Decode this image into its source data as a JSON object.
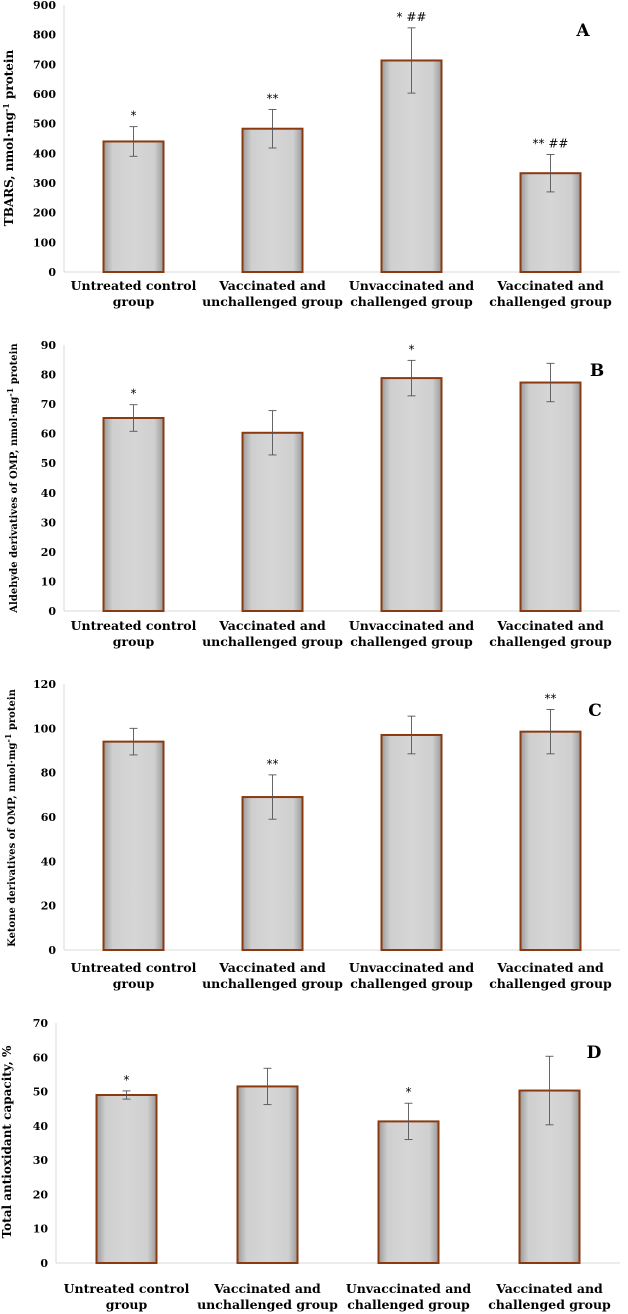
{
  "chart_data": [
    {
      "type": "bar",
      "panel": "A",
      "ylabel": "TBARS, nmol·mg",
      "ylabel_sup": "-1",
      "ylabel_suffix": " protein",
      "ylim": [
        0,
        900
      ],
      "yticks": [
        0,
        100,
        200,
        300,
        400,
        500,
        600,
        700,
        800,
        900
      ],
      "categories": [
        [
          "Untreated control",
          "group"
        ],
        [
          "Vaccinated and",
          "unchallenged group"
        ],
        [
          "Unvaccinated and",
          "challenged group"
        ],
        [
          "Vaccinated and",
          "challenged group"
        ]
      ],
      "values": [
        440,
        483,
        713,
        333
      ],
      "errors": [
        50,
        65,
        110,
        63
      ],
      "annotations": [
        "*",
        "**",
        "* ##",
        "**  ##"
      ]
    },
    {
      "type": "bar",
      "panel": "B",
      "ylabel": "Aldehyde derivatives of OMP, nmol·mg",
      "ylabel_sup": "-1",
      "ylabel_suffix": " protein",
      "ylim": [
        0,
        90
      ],
      "yticks": [
        0,
        10,
        20,
        30,
        40,
        50,
        60,
        70,
        80,
        90
      ],
      "categories": [
        [
          "Untreated control",
          "group"
        ],
        [
          "Vaccinated and",
          "unchallenged group"
        ],
        [
          "Unvaccinated and",
          "challenged group"
        ],
        [
          "Vaccinated and",
          "challenged group"
        ]
      ],
      "values": [
        65.3,
        60.3,
        78.8,
        77.3
      ],
      "errors": [
        4.5,
        7.5,
        6,
        6.5
      ],
      "annotations": [
        "*",
        "",
        "*",
        ""
      ]
    },
    {
      "type": "bar",
      "panel": "C",
      "ylabel": "Ketone derivatives of OMP, nmol·mg",
      "ylabel_sup": "-1",
      "ylabel_suffix": " protein",
      "ylim": [
        0,
        120
      ],
      "yticks": [
        0,
        20,
        40,
        60,
        80,
        100,
        120
      ],
      "categories": [
        [
          "Untreated control",
          "group"
        ],
        [
          "Vaccinated and",
          "unchallenged group"
        ],
        [
          "Unvaccinated and",
          "challenged group"
        ],
        [
          "Vaccinated and",
          "challenged group"
        ]
      ],
      "values": [
        94,
        69,
        97,
        98.5
      ],
      "errors": [
        6,
        10,
        8.5,
        10
      ],
      "annotations": [
        "",
        "**",
        "",
        "**"
      ]
    },
    {
      "type": "bar",
      "panel": "D",
      "ylabel": "Total antioxidant capacity, %",
      "ylabel_sup": "",
      "ylabel_suffix": "",
      "ylim": [
        0,
        70
      ],
      "yticks": [
        0,
        10,
        20,
        30,
        40,
        50,
        60,
        70
      ],
      "categories": [
        [
          "Untreated control",
          "group"
        ],
        [
          "Vaccinated and",
          "unchallenged group"
        ],
        [
          "Unvaccinated and",
          "challenged group"
        ],
        [
          "Vaccinated and",
          "challenged group"
        ]
      ],
      "values": [
        49,
        51.5,
        41.3,
        50.3
      ],
      "errors": [
        1.2,
        5.3,
        5.3,
        10
      ],
      "annotations": [
        "*",
        "",
        "*",
        ""
      ]
    }
  ],
  "colors": {
    "bar_fill": "#c8c8c8",
    "bar_edge": "#8b3a0f",
    "error_bar": "#555555",
    "axis": "#d9d9d9"
  }
}
